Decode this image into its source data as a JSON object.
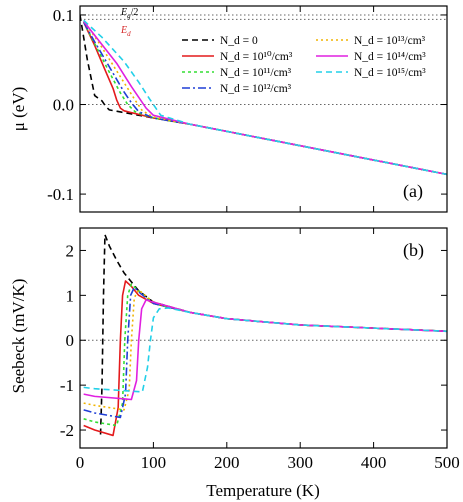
{
  "chart_data": [
    {
      "panel": "(a)",
      "type": "line",
      "ylabel": "μ (eV)",
      "xlim": [
        0,
        500
      ],
      "ylim": [
        -0.12,
        0.11
      ],
      "yticks": [
        0.1,
        0.0,
        -0.1
      ],
      "ytick_labels": [
        "0.1",
        "0.0",
        "-0.1"
      ],
      "reference_lines": [
        {
          "label": "E_g/2",
          "y": 0.1,
          "color": "#666666",
          "style": "dotted"
        },
        {
          "label": "E_d",
          "y": 0.095,
          "color": "#666666",
          "style": "dotted"
        },
        {
          "label": "",
          "y": 0.0,
          "color": "#666666",
          "style": "dotted"
        }
      ],
      "reference_labels": [
        {
          "text": "E",
          "sub": "g",
          "suffix": "/2",
          "color": "#000000"
        },
        {
          "text": "E",
          "sub": "d",
          "suffix": "",
          "color": "#d62728"
        }
      ],
      "legend_location": "upper right",
      "series": [
        {
          "name": "N_d = 0",
          "color": "#000000",
          "dash": "6,4",
          "x": [
            0,
            10,
            20,
            30,
            35,
            40,
            60,
            100,
            150,
            200,
            300,
            400,
            500
          ],
          "y": [
            0.1,
            0.05,
            0.01,
            0.004,
            -0.002,
            -0.006,
            -0.009,
            -0.015,
            -0.022,
            -0.03,
            -0.046,
            -0.062,
            -0.078
          ]
        },
        {
          "name": "N_d = 10¹⁰/cm³",
          "color": "#e41a1c",
          "dash": "",
          "x": [
            5,
            20,
            35,
            45,
            50,
            55,
            60,
            100,
            150,
            200,
            300,
            400,
            500
          ],
          "y": [
            0.092,
            0.066,
            0.037,
            0.018,
            0.005,
            -0.004,
            -0.007,
            -0.015,
            -0.022,
            -0.03,
            -0.046,
            -0.062,
            -0.078
          ]
        },
        {
          "name": "N_d = 10¹¹/cm³",
          "color": "#33dd33",
          "dash": "3,3",
          "x": [
            5,
            20,
            40,
            55,
            65,
            75,
            100,
            150,
            200,
            300,
            400,
            500
          ],
          "y": [
            0.092,
            0.068,
            0.036,
            0.013,
            0.0,
            -0.008,
            -0.015,
            -0.022,
            -0.03,
            -0.046,
            -0.062,
            -0.078
          ]
        },
        {
          "name": "N_d = 10¹²/cm³",
          "color": "#1f3fd6",
          "dash": "8,3,2,3",
          "x": [
            5,
            20,
            40,
            60,
            70,
            80,
            100,
            150,
            200,
            300,
            400,
            500
          ],
          "y": [
            0.092,
            0.07,
            0.042,
            0.014,
            0.002,
            -0.008,
            -0.015,
            -0.022,
            -0.03,
            -0.046,
            -0.062,
            -0.078
          ]
        },
        {
          "name": "N_d = 10¹³/cm³",
          "color": "#f0b400",
          "dash": "2,3",
          "x": [
            5,
            25,
            45,
            65,
            75,
            85,
            100,
            150,
            200,
            300,
            400,
            500
          ],
          "y": [
            0.093,
            0.07,
            0.044,
            0.018,
            0.005,
            -0.007,
            -0.014,
            -0.022,
            -0.03,
            -0.046,
            -0.062,
            -0.078
          ]
        },
        {
          "name": "N_d = 10¹⁴/cm³",
          "color": "#e020e0",
          "dash": "",
          "x": [
            5,
            25,
            50,
            70,
            80,
            90,
            100,
            150,
            200,
            300,
            400,
            500
          ],
          "y": [
            0.093,
            0.072,
            0.046,
            0.02,
            0.008,
            -0.004,
            -0.012,
            -0.022,
            -0.03,
            -0.046,
            -0.062,
            -0.078
          ]
        },
        {
          "name": "N_d = 10¹⁵/cm³",
          "color": "#22d0e8",
          "dash": "6,4",
          "x": [
            5,
            30,
            60,
            80,
            95,
            110,
            150,
            200,
            300,
            400,
            500
          ],
          "y": [
            0.094,
            0.075,
            0.048,
            0.025,
            0.006,
            -0.012,
            -0.022,
            -0.03,
            -0.046,
            -0.062,
            -0.078
          ]
        }
      ]
    },
    {
      "panel": "(b)",
      "type": "line",
      "xlabel": "Temperature (K)",
      "ylabel": "Seebeck (mV/K)",
      "xlim": [
        0,
        500
      ],
      "ylim": [
        -2.4,
        2.5
      ],
      "xticks": [
        0,
        100,
        200,
        300,
        400,
        500
      ],
      "yticks": [
        2,
        1,
        0,
        -1,
        -2
      ],
      "reference_lines": [
        {
          "label": "",
          "y": 0.0,
          "color": "#666666",
          "style": "dotted"
        }
      ],
      "series": [
        {
          "name": "N_d = 0",
          "color": "#000000",
          "dash": "6,4",
          "x": [
            28,
            30,
            32,
            34,
            40,
            50,
            60,
            80,
            100,
            150,
            200,
            300,
            400,
            500
          ],
          "y": [
            -2.1,
            -1.0,
            1.0,
            2.35,
            2.1,
            1.78,
            1.5,
            1.1,
            0.85,
            0.62,
            0.48,
            0.34,
            0.27,
            0.2
          ]
        },
        {
          "name": "N_d = 10¹⁰/cm³",
          "color": "#e41a1c",
          "dash": "",
          "x": [
            5,
            20,
            45,
            52,
            55,
            58,
            62,
            70,
            80,
            100,
            150,
            200,
            300,
            400,
            500
          ],
          "y": [
            -1.9,
            -2.0,
            -2.12,
            -1.5,
            0.0,
            1.0,
            1.32,
            1.2,
            1.0,
            0.82,
            0.62,
            0.48,
            0.34,
            0.27,
            0.2
          ]
        },
        {
          "name": "N_d = 10¹¹/cm³",
          "color": "#33dd33",
          "dash": "3,3",
          "x": [
            5,
            20,
            50,
            58,
            61,
            65,
            70,
            80,
            100,
            150,
            200,
            300,
            400,
            500
          ],
          "y": [
            -1.75,
            -1.82,
            -1.9,
            -1.4,
            0.0,
            1.0,
            1.25,
            1.1,
            0.82,
            0.62,
            0.48,
            0.34,
            0.27,
            0.2
          ]
        },
        {
          "name": "N_d = 10¹²/cm³",
          "color": "#1f3fd6",
          "dash": "8,3,2,3",
          "x": [
            5,
            20,
            55,
            62,
            65,
            69,
            74,
            82,
            100,
            150,
            200,
            300,
            400,
            500
          ],
          "y": [
            -1.55,
            -1.62,
            -1.72,
            -1.2,
            0.0,
            1.0,
            1.18,
            1.05,
            0.82,
            0.62,
            0.48,
            0.34,
            0.27,
            0.2
          ]
        },
        {
          "name": "N_d = 10¹³/cm³",
          "color": "#f0b400",
          "dash": "2,3",
          "x": [
            5,
            20,
            60,
            67,
            70,
            74,
            80,
            90,
            100,
            150,
            200,
            300,
            400,
            500
          ],
          "y": [
            -1.4,
            -1.45,
            -1.55,
            -1.1,
            0.0,
            0.95,
            1.12,
            0.98,
            0.85,
            0.62,
            0.48,
            0.34,
            0.27,
            0.2
          ]
        },
        {
          "name": "N_d = 10¹⁴/cm³",
          "color": "#e020e0",
          "dash": "",
          "x": [
            5,
            20,
            70,
            77,
            80,
            84,
            90,
            100,
            150,
            200,
            300,
            400,
            500
          ],
          "y": [
            -1.2,
            -1.25,
            -1.32,
            -0.9,
            0.0,
            0.7,
            0.9,
            0.85,
            0.62,
            0.48,
            0.34,
            0.27,
            0.2
          ]
        },
        {
          "name": "N_d = 10¹⁵/cm³",
          "color": "#22d0e8",
          "dash": "6,4",
          "x": [
            5,
            20,
            85,
            92,
            96,
            100,
            108,
            120,
            150,
            200,
            300,
            400,
            500
          ],
          "y": [
            -1.05,
            -1.08,
            -1.15,
            -0.6,
            0.0,
            0.5,
            0.7,
            0.72,
            0.62,
            0.48,
            0.34,
            0.27,
            0.2
          ]
        }
      ]
    }
  ]
}
